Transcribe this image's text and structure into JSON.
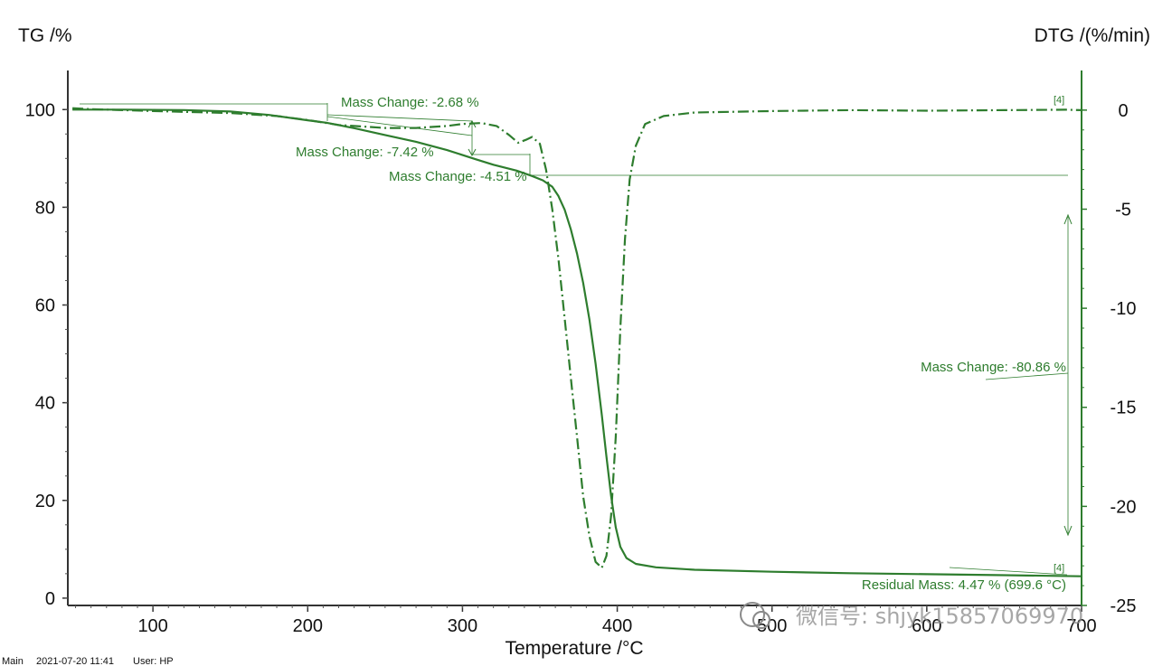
{
  "chart_data": {
    "type": "line",
    "xlabel": "Temperature /°C",
    "ylabel_left": "TG /%",
    "ylabel_right": "DTG /(%/min)",
    "xlim": [
      45,
      700
    ],
    "ylim_left": [
      -1.5,
      108
    ],
    "ylim_right": [
      -25,
      2
    ],
    "x_ticks": [
      100,
      200,
      300,
      400,
      500,
      600,
      700
    ],
    "y_ticks_left": [
      0,
      20,
      40,
      60,
      80,
      100
    ],
    "y_ticks_right": [
      0,
      -5,
      -10,
      -15,
      -20,
      -25
    ],
    "grid": false,
    "line_color": "#2e7d2e",
    "series": [
      {
        "axis": "left",
        "style": "solid",
        "points": [
          [
            48,
            100
          ],
          [
            80,
            100
          ],
          [
            120,
            99.9
          ],
          [
            150,
            99.6
          ],
          [
            175,
            98.9
          ],
          [
            200,
            97.8
          ],
          [
            212,
            97.3
          ],
          [
            230,
            96.2
          ],
          [
            250,
            94.8
          ],
          [
            270,
            93.4
          ],
          [
            290,
            91.7
          ],
          [
            308,
            89.9
          ],
          [
            320,
            88.7
          ],
          [
            335,
            87.5
          ],
          [
            345,
            86.4
          ],
          [
            352,
            85.5
          ],
          [
            358,
            84.2
          ],
          [
            362,
            82.3
          ],
          [
            366,
            79.5
          ],
          [
            370,
            75.5
          ],
          [
            374,
            70.5
          ],
          [
            378,
            64.5
          ],
          [
            382,
            57
          ],
          [
            386,
            48
          ],
          [
            390,
            37.5
          ],
          [
            393,
            29
          ],
          [
            396,
            21
          ],
          [
            399,
            14.5
          ],
          [
            402,
            10.5
          ],
          [
            406,
            8.2
          ],
          [
            412,
            7
          ],
          [
            425,
            6.3
          ],
          [
            450,
            5.8
          ],
          [
            500,
            5.4
          ],
          [
            550,
            5.1
          ],
          [
            600,
            4.9
          ],
          [
            650,
            4.7
          ],
          [
            699.6,
            4.47
          ]
        ]
      },
      {
        "axis": "right",
        "style": "dashdot",
        "points": [
          [
            48,
            0.1
          ],
          [
            60,
            0.05
          ],
          [
            100,
            -0.05
          ],
          [
            150,
            -0.15
          ],
          [
            180,
            -0.3
          ],
          [
            200,
            -0.5
          ],
          [
            220,
            -0.75
          ],
          [
            250,
            -0.9
          ],
          [
            270,
            -0.9
          ],
          [
            290,
            -0.8
          ],
          [
            300,
            -0.7
          ],
          [
            312,
            -0.65
          ],
          [
            322,
            -0.8
          ],
          [
            330,
            -1.25
          ],
          [
            336,
            -1.65
          ],
          [
            341,
            -1.5
          ],
          [
            345,
            -1.35
          ],
          [
            350,
            -1.7
          ],
          [
            354,
            -3
          ],
          [
            358,
            -5
          ],
          [
            362,
            -7.5
          ],
          [
            366,
            -10.5
          ],
          [
            370,
            -13.5
          ],
          [
            374,
            -16.5
          ],
          [
            378,
            -19.5
          ],
          [
            382,
            -21.5
          ],
          [
            386,
            -22.8
          ],
          [
            390,
            -23.1
          ],
          [
            393,
            -22.5
          ],
          [
            396,
            -20.5
          ],
          [
            399,
            -16.5
          ],
          [
            402,
            -11
          ],
          [
            405,
            -6.5
          ],
          [
            408,
            -3.5
          ],
          [
            412,
            -1.8
          ],
          [
            418,
            -0.7
          ],
          [
            430,
            -0.3
          ],
          [
            450,
            -0.12
          ],
          [
            500,
            -0.05
          ],
          [
            550,
            0
          ],
          [
            600,
            -0.03
          ],
          [
            650,
            0
          ],
          [
            690,
            0.02
          ],
          [
            700,
            0
          ]
        ]
      }
    ],
    "annotations": [
      {
        "text": "Mass Change: -2.68 %"
      },
      {
        "text": "Mass Change: -7.42 %"
      },
      {
        "text": "Mass Change: -4.51 %"
      },
      {
        "text": "Mass Change: -80.86 %"
      },
      {
        "text": "Residual Mass: 4.47 % (699.6 °C)"
      }
    ],
    "markers": [
      "[4]",
      "[4]"
    ]
  },
  "footer": {
    "main": "Main",
    "datetime": "2021-07-20 11:41",
    "user": "User: HP"
  },
  "watermark": {
    "text": "微信号: shjyk15857069970"
  }
}
